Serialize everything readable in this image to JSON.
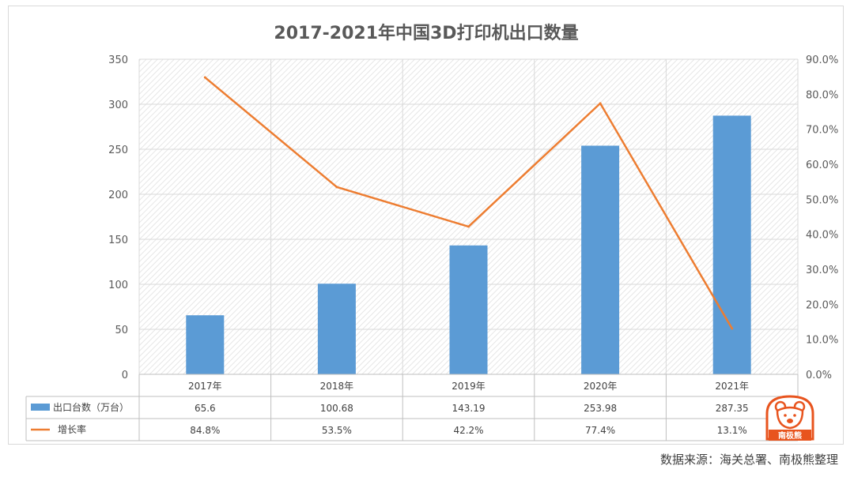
{
  "source_note": "数据来源：海关总署、南极熊整理",
  "logo_text": "南极熊",
  "colors": {
    "bar": "#5b9bd5",
    "line": "#ed7d31",
    "logo": "#e8541e"
  },
  "chart_data": {
    "type": "bar",
    "title": "2017-2021年中国3D打印机出口数量",
    "categories": [
      "2017年",
      "2018年",
      "2019年",
      "2020年",
      "2021年"
    ],
    "series": [
      {
        "name": "出口台数（万台）",
        "type": "bar",
        "axis": "left",
        "values": [
          65.6,
          100.68,
          143.19,
          253.98,
          287.35
        ],
        "labels": [
          "65.6",
          "100.68",
          "143.19",
          "253.98",
          "287.35"
        ]
      },
      {
        "name": "增长率",
        "type": "line",
        "axis": "right",
        "values": [
          84.8,
          53.5,
          42.2,
          77.4,
          13.1
        ],
        "labels": [
          "84.8%",
          "53.5%",
          "42.2%",
          "77.4%",
          "13.1%"
        ]
      }
    ],
    "ylim": [
      0,
      350
    ],
    "yticks": [
      "0",
      "50",
      "100",
      "150",
      "200",
      "250",
      "300",
      "350"
    ],
    "y2lim": [
      0,
      90
    ],
    "y2ticks": [
      "0.0%",
      "10.0%",
      "20.0%",
      "30.0%",
      "40.0%",
      "50.0%",
      "60.0%",
      "70.0%",
      "80.0%",
      "90.0%"
    ],
    "grid": true,
    "data_table": true
  }
}
